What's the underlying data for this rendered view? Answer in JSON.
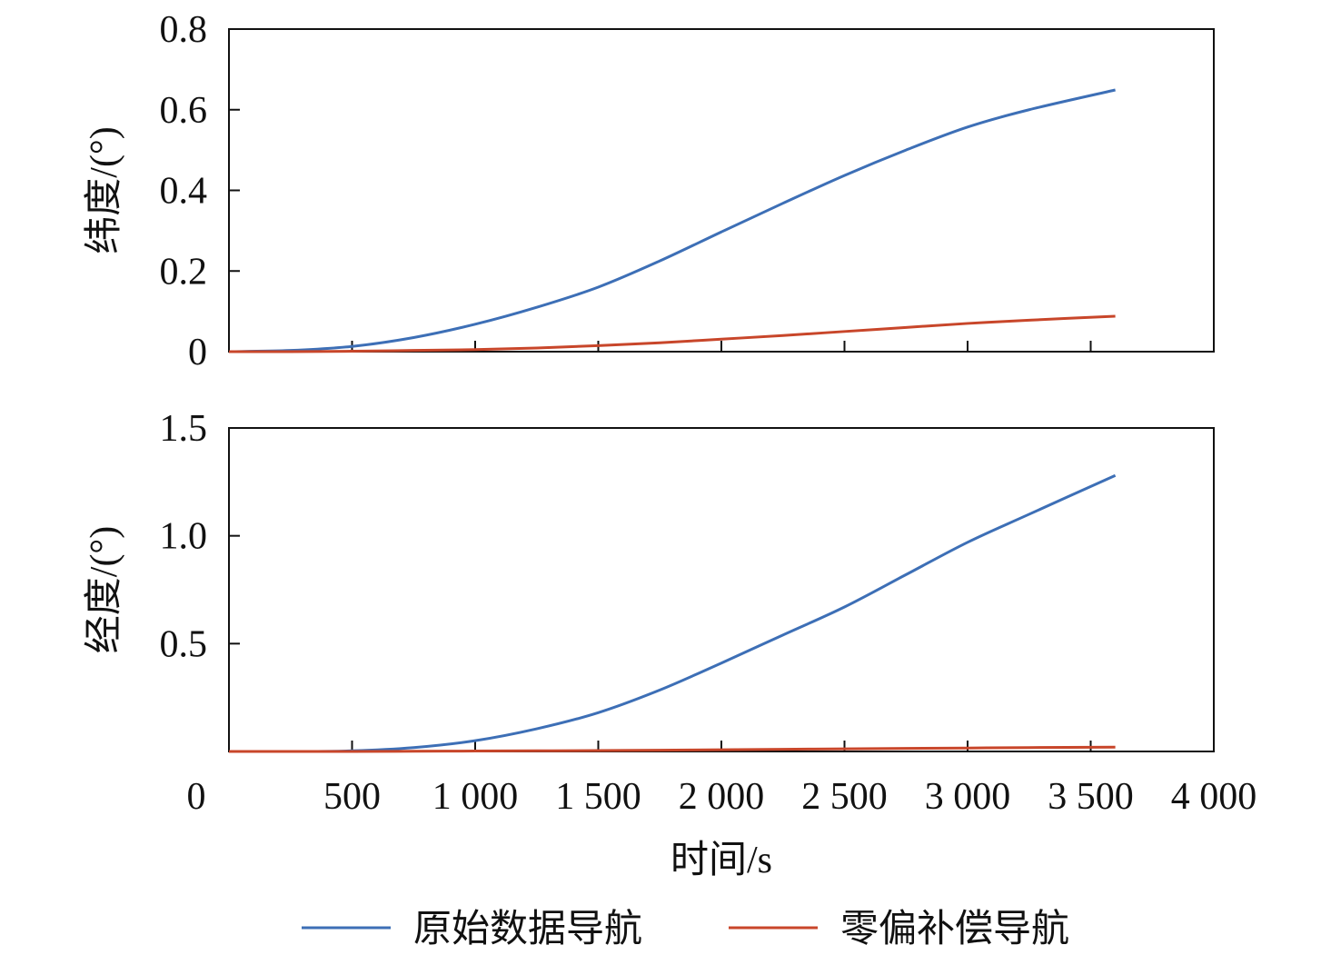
{
  "chart_data": [
    {
      "type": "line",
      "ylabel": "纬度/(°)",
      "xlabel": "",
      "xlim": [
        0,
        4000
      ],
      "ylim": [
        0,
        0.8
      ],
      "yticks": [
        "0",
        "0.2",
        "0.4",
        "0.6",
        "0.8"
      ],
      "ytick_values": [
        0,
        0.2,
        0.4,
        0.6,
        0.8
      ],
      "xtick_values": [
        500,
        1000,
        1500,
        2000,
        2500,
        3000,
        3500
      ],
      "x": [
        0,
        250,
        500,
        750,
        1000,
        1250,
        1500,
        1750,
        2000,
        2250,
        2500,
        2750,
        3000,
        3250,
        3600
      ],
      "series": [
        {
          "name": "原始数据导航",
          "color": "#3d6fb6",
          "values": [
            0,
            0.003,
            0.013,
            0.035,
            0.068,
            0.11,
            0.16,
            0.225,
            0.297,
            0.368,
            0.437,
            0.5,
            0.557,
            0.6,
            0.649
          ]
        },
        {
          "name": "零偏补偿导航",
          "color": "#c8462a",
          "values": [
            0,
            0,
            0.001,
            0.003,
            0.005,
            0.009,
            0.015,
            0.022,
            0.031,
            0.04,
            0.05,
            0.06,
            0.07,
            0.078,
            0.088
          ]
        }
      ]
    },
    {
      "type": "line",
      "ylabel": "经度/(°)",
      "xlabel": "时间/s",
      "xlim": [
        0,
        4000
      ],
      "ylim": [
        0,
        1.5
      ],
      "yticks": [
        "0.5",
        "1.0",
        "1.5"
      ],
      "ytick_values": [
        0.5,
        1.0,
        1.5
      ],
      "xticks": [
        "0",
        "500",
        "1 000",
        "1 500",
        "2 000",
        "2 500",
        "3 000",
        "3 500",
        "4 000"
      ],
      "xtick_values": [
        0,
        500,
        1000,
        1500,
        2000,
        2500,
        3000,
        3500,
        4000
      ],
      "x": [
        0,
        250,
        500,
        750,
        1000,
        1250,
        1500,
        1750,
        2000,
        2250,
        2500,
        2750,
        3000,
        3250,
        3600
      ],
      "series": [
        {
          "name": "原始数据导航",
          "color": "#3d6fb6",
          "values": [
            0,
            0,
            0.003,
            0.018,
            0.05,
            0.105,
            0.18,
            0.285,
            0.41,
            0.54,
            0.67,
            0.82,
            0.97,
            1.1,
            1.28
          ]
        },
        {
          "name": "零偏补偿导航",
          "color": "#c8462a",
          "values": [
            0,
            0,
            0,
            0.001,
            0.002,
            0.003,
            0.004,
            0.006,
            0.008,
            0.01,
            0.012,
            0.014,
            0.016,
            0.018,
            0.02
          ]
        }
      ]
    }
  ],
  "legend": {
    "placement": "bottom",
    "items": [
      {
        "label": "原始数据导航",
        "color": "#3d6fb6"
      },
      {
        "label": "零偏补偿导航",
        "color": "#c8462a"
      }
    ]
  }
}
